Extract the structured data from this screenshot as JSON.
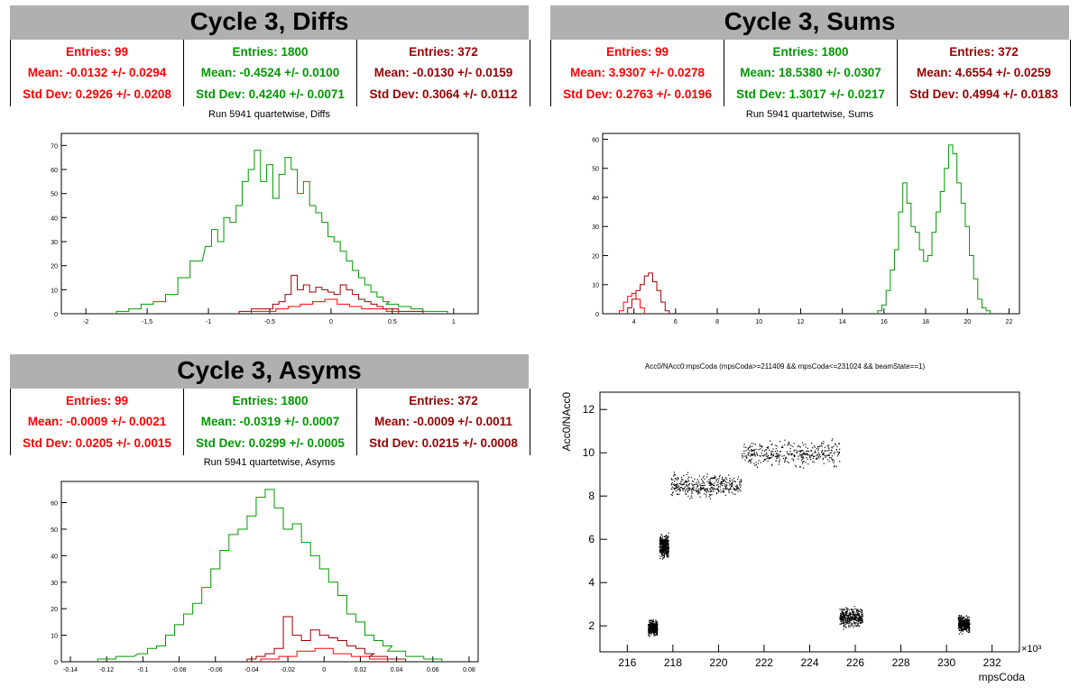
{
  "panels": [
    {
      "id": "diffs",
      "header": "Cycle 3, Diffs",
      "subtitle": "Run 5941 quartetwise, Diffs",
      "stats": [
        {
          "color": "#ff0000",
          "entries": "Entries: 99",
          "mean": "Mean: -0.0132 +/- 0.0294",
          "std": "Std Dev: 0.2926 +/- 0.0208"
        },
        {
          "color": "#009900",
          "entries": "Entries: 1800",
          "mean": "Mean: -0.4524 +/- 0.0100",
          "std": "Std Dev: 0.4240 +/- 0.0071"
        },
        {
          "color": "#990000",
          "entries": "Entries: 372",
          "mean": "Mean: -0.0130 +/- 0.0159",
          "std": "Std Dev: 0.3064 +/- 0.0112"
        }
      ]
    },
    {
      "id": "sums",
      "header": "Cycle 3, Sums",
      "subtitle": "Run 5941 quartetwise, Sums",
      "stats": [
        {
          "color": "#ff0000",
          "entries": "Entries: 99",
          "mean": "Mean: 3.9307 +/- 0.0278",
          "std": "Std Dev: 0.2763 +/- 0.0196"
        },
        {
          "color": "#009900",
          "entries": "Entries: 1800",
          "mean": "Mean: 18.5380 +/- 0.0307",
          "std": "Std Dev: 1.3017 +/- 0.0217"
        },
        {
          "color": "#990000",
          "entries": "Entries: 372",
          "mean": "Mean: 4.6554 +/- 0.0259",
          "std": "Std Dev: 0.4994 +/- 0.0183"
        }
      ]
    },
    {
      "id": "asyms",
      "header": "Cycle 3, Asyms",
      "subtitle": "Run 5941 quartetwise, Asyms",
      "stats": [
        {
          "color": "#ff0000",
          "entries": "Entries: 99",
          "mean": "Mean: -0.0009 +/- 0.0021",
          "std": "Std Dev: 0.0205 +/- 0.0015"
        },
        {
          "color": "#009900",
          "entries": "Entries: 1800",
          "mean": "Mean: -0.0319 +/- 0.0007",
          "std": "Std Dev: 0.0299 +/- 0.0005"
        },
        {
          "color": "#990000",
          "entries": "Entries: 372",
          "mean": "Mean: -0.0009 +/- 0.0011",
          "std": "Std Dev: 0.0215 +/- 0.0008"
        }
      ]
    }
  ],
  "chart_data": [
    {
      "type": "histogram",
      "id": "diffs",
      "xlim": [
        -2.2,
        1.2
      ],
      "ylim": [
        0,
        75
      ],
      "xticks": [
        -2,
        -1.5,
        -1,
        -0.5,
        0,
        0.5,
        1
      ],
      "xticklabels": [
        "-2",
        "-1.5",
        "-1",
        "-0.5",
        "0",
        "0.5",
        "1"
      ],
      "yticks": [
        0,
        10,
        20,
        30,
        40,
        50,
        60,
        70
      ],
      "series": [
        {
          "color": "#009900",
          "x": [
            -1.7,
            -1.6,
            -1.5,
            -1.4,
            -1.3,
            -1.2,
            -1.1,
            -1.0,
            -0.95,
            -0.9,
            -0.85,
            -0.8,
            -0.75,
            -0.7,
            -0.65,
            -0.6,
            -0.55,
            -0.5,
            -0.45,
            -0.4,
            -0.35,
            -0.3,
            -0.25,
            -0.2,
            -0.15,
            -0.1,
            -0.05,
            0,
            0.05,
            0.1,
            0.15,
            0.2,
            0.25,
            0.3,
            0.35,
            0.4,
            0.45,
            0.5,
            0.6,
            0.7,
            0.8,
            0.9
          ],
          "values": [
            1,
            2,
            4,
            5,
            8,
            15,
            22,
            28,
            35,
            30,
            40,
            38,
            45,
            55,
            60,
            68,
            55,
            62,
            48,
            58,
            65,
            60,
            50,
            55,
            45,
            42,
            38,
            32,
            30,
            26,
            22,
            18,
            15,
            12,
            9,
            7,
            5,
            4,
            3,
            2,
            1,
            1
          ]
        },
        {
          "color": "#990000",
          "x": [
            -0.7,
            -0.6,
            -0.5,
            -0.45,
            -0.4,
            -0.35,
            -0.3,
            -0.25,
            -0.2,
            -0.15,
            -0.1,
            -0.05,
            0,
            0.05,
            0.1,
            0.15,
            0.2,
            0.25,
            0.3,
            0.35,
            0.4,
            0.45,
            0.5,
            0.6,
            0.7
          ],
          "values": [
            1,
            2,
            2,
            4,
            5,
            8,
            16,
            10,
            12,
            9,
            11,
            10,
            9,
            8,
            12,
            10,
            8,
            6,
            5,
            4,
            3,
            2,
            2,
            1,
            1
          ]
        },
        {
          "color": "#ff0000",
          "x": [
            -0.6,
            -0.5,
            -0.4,
            -0.3,
            -0.2,
            -0.1,
            0,
            0.1,
            0.2,
            0.3,
            0.4,
            0.5
          ],
          "values": [
            1,
            1,
            2,
            3,
            4,
            5,
            6,
            4,
            3,
            2,
            2,
            1
          ]
        }
      ]
    },
    {
      "type": "histogram",
      "id": "sums",
      "xlim": [
        2.5,
        22.5
      ],
      "ylim": [
        0,
        62
      ],
      "xticks": [
        4,
        6,
        8,
        10,
        12,
        14,
        16,
        18,
        20,
        22
      ],
      "xticklabels": [
        "4",
        "6",
        "8",
        "10",
        "12",
        "14",
        "16",
        "18",
        "20",
        "22"
      ],
      "yticks": [
        0,
        10,
        20,
        30,
        40,
        50,
        60
      ],
      "series": [
        {
          "color": "#009900",
          "x": [
            15.8,
            16.0,
            16.2,
            16.4,
            16.6,
            16.8,
            17.0,
            17.2,
            17.4,
            17.6,
            17.8,
            18.0,
            18.2,
            18.4,
            18.6,
            18.8,
            19.0,
            19.2,
            19.4,
            19.6,
            19.8,
            20.0,
            20.2,
            20.4,
            20.6,
            20.8,
            21.0
          ],
          "values": [
            1,
            3,
            8,
            15,
            22,
            35,
            45,
            38,
            30,
            28,
            22,
            18,
            20,
            28,
            35,
            42,
            50,
            58,
            55,
            45,
            38,
            30,
            20,
            12,
            5,
            2,
            1
          ]
        },
        {
          "color": "#990000",
          "x": [
            3.8,
            4.0,
            4.2,
            4.4,
            4.6,
            4.8,
            5.0,
            5.2,
            5.4,
            5.6
          ],
          "values": [
            2,
            5,
            8,
            10,
            13,
            14,
            11,
            8,
            4,
            1
          ]
        },
        {
          "color": "#ff0000",
          "x": [
            3.4,
            3.6,
            3.8,
            4.0,
            4.2,
            4.4
          ],
          "values": [
            1,
            4,
            6,
            7,
            5,
            2
          ]
        }
      ]
    },
    {
      "type": "histogram",
      "id": "asyms",
      "xlim": [
        -0.145,
        0.085
      ],
      "ylim": [
        0,
        68
      ],
      "xticks": [
        -0.14,
        -0.12,
        -0.1,
        -0.08,
        -0.06,
        -0.04,
        -0.02,
        0,
        0.02,
        0.04,
        0.06,
        0.08
      ],
      "xticklabels": [
        "-0.14",
        "-0.12",
        "-0.1",
        "-0.08",
        "-0.06",
        "-0.04",
        "-0.02",
        "0",
        "0.02",
        "0.04",
        "0.06",
        "0.08"
      ],
      "yticks": [
        0,
        10,
        20,
        30,
        40,
        50,
        60
      ],
      "series": [
        {
          "color": "#009900",
          "x": [
            -0.12,
            -0.11,
            -0.1,
            -0.095,
            -0.09,
            -0.085,
            -0.08,
            -0.075,
            -0.07,
            -0.065,
            -0.06,
            -0.055,
            -0.05,
            -0.045,
            -0.04,
            -0.035,
            -0.03,
            -0.025,
            -0.02,
            -0.015,
            -0.01,
            -0.005,
            0,
            0.005,
            0.01,
            0.015,
            0.02,
            0.025,
            0.03,
            0.035,
            0.04,
            0.05,
            0.06
          ],
          "values": [
            1,
            2,
            3,
            5,
            6,
            10,
            14,
            18,
            22,
            28,
            35,
            42,
            48,
            50,
            55,
            62,
            65,
            58,
            50,
            52,
            45,
            40,
            35,
            30,
            25,
            18,
            15,
            10,
            8,
            6,
            4,
            2,
            1
          ]
        },
        {
          "color": "#990000",
          "x": [
            -0.04,
            -0.035,
            -0.03,
            -0.025,
            -0.02,
            -0.015,
            -0.01,
            -0.005,
            0,
            0.005,
            0.01,
            0.015,
            0.02,
            0.025,
            0.03,
            0.04
          ],
          "values": [
            1,
            2,
            3,
            5,
            17,
            10,
            8,
            12,
            10,
            9,
            8,
            6,
            5,
            3,
            2,
            1
          ]
        },
        {
          "color": "#ff0000",
          "x": [
            -0.03,
            -0.02,
            -0.01,
            0,
            0.01,
            0.02,
            0.03
          ],
          "values": [
            1,
            2,
            4,
            5,
            3,
            2,
            1
          ]
        }
      ]
    },
    {
      "type": "scatter",
      "id": "scatter",
      "title": "Acc0/NAcc0:mpsCoda (mpsCoda>=211409 && mpsCoda<=231024 && beamState==1)",
      "xlabel": "mpsCoda",
      "ylabel": "Acc0/NAcc0",
      "xexponent": "×10³",
      "xlim": [
        214.8,
        233.2
      ],
      "ylim": [
        0.8,
        12.8
      ],
      "xticks": [
        216,
        218,
        220,
        222,
        224,
        226,
        228,
        230,
        232
      ],
      "xticklabels": [
        "216",
        "218",
        "220",
        "222",
        "224",
        "226",
        "228",
        "230",
        "232"
      ],
      "yticks": [
        2,
        4,
        6,
        8,
        10,
        12
      ],
      "yticklabels": [
        "2",
        "4",
        "6",
        "8",
        "10",
        "12"
      ],
      "clusters": [
        {
          "x": [
            216.9,
            217.3
          ],
          "y": [
            1.5,
            2.4
          ]
        },
        {
          "x": [
            217.4,
            217.8
          ],
          "y": [
            5.0,
            6.4
          ]
        },
        {
          "x": [
            217.9,
            221.0
          ],
          "y": [
            7.8,
            9.2
          ]
        },
        {
          "x": [
            221.0,
            225.3
          ],
          "y": [
            9.2,
            10.8
          ]
        },
        {
          "x": [
            225.3,
            226.3
          ],
          "y": [
            1.8,
            3.0
          ]
        },
        {
          "x": [
            230.5,
            231.0
          ],
          "y": [
            1.6,
            2.6
          ]
        }
      ]
    }
  ]
}
